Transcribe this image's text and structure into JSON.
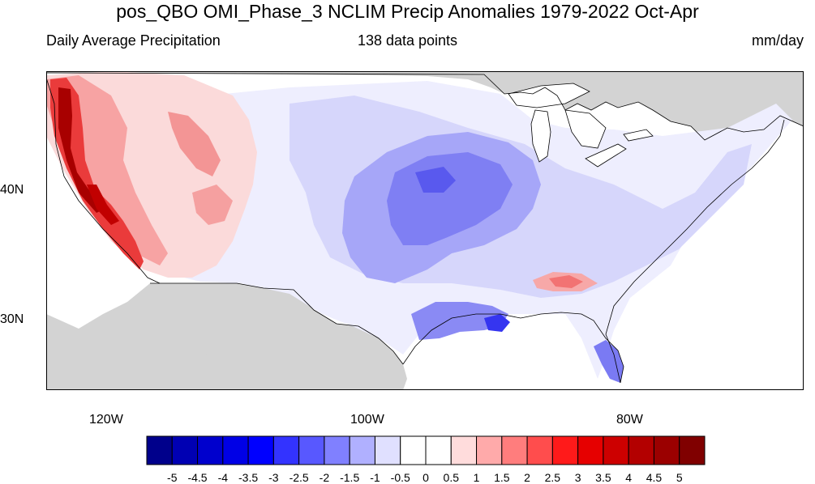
{
  "title": "pos_QBO OMI_Phase_3 NCLIM Precip Anomalies 1979-2022 Oct-Apr",
  "subtitle_left": "Daily Average Precipitation",
  "subtitle_center": "138 data points",
  "subtitle_right": "mm/day",
  "lat_labels": [
    "40N",
    "30N"
  ],
  "lon_labels": [
    "120W",
    "100W",
    "80W"
  ],
  "colorbar": {
    "colors": [
      "#00008b",
      "#0000b3",
      "#0000cd",
      "#0000e6",
      "#0000ff",
      "#3333ff",
      "#5858ff",
      "#8080ff",
      "#b0b0ff",
      "#e0e0ff",
      "#ffffff",
      "#ffffff",
      "#ffdcdc",
      "#ffaaaa",
      "#ff7d7d",
      "#ff4d4d",
      "#ff1a1a",
      "#e60000",
      "#cd0000",
      "#b30000",
      "#9b0000",
      "#800000"
    ],
    "labels": [
      "-5",
      "-4.5",
      "-4",
      "-3.5",
      "-3",
      "-2.5",
      "-2",
      "-1.5",
      "-1",
      "-0.5",
      "0",
      "0.5",
      "1",
      "1.5",
      "2",
      "2.5",
      "3",
      "3.5",
      "4",
      "4.5",
      "5"
    ]
  }
}
